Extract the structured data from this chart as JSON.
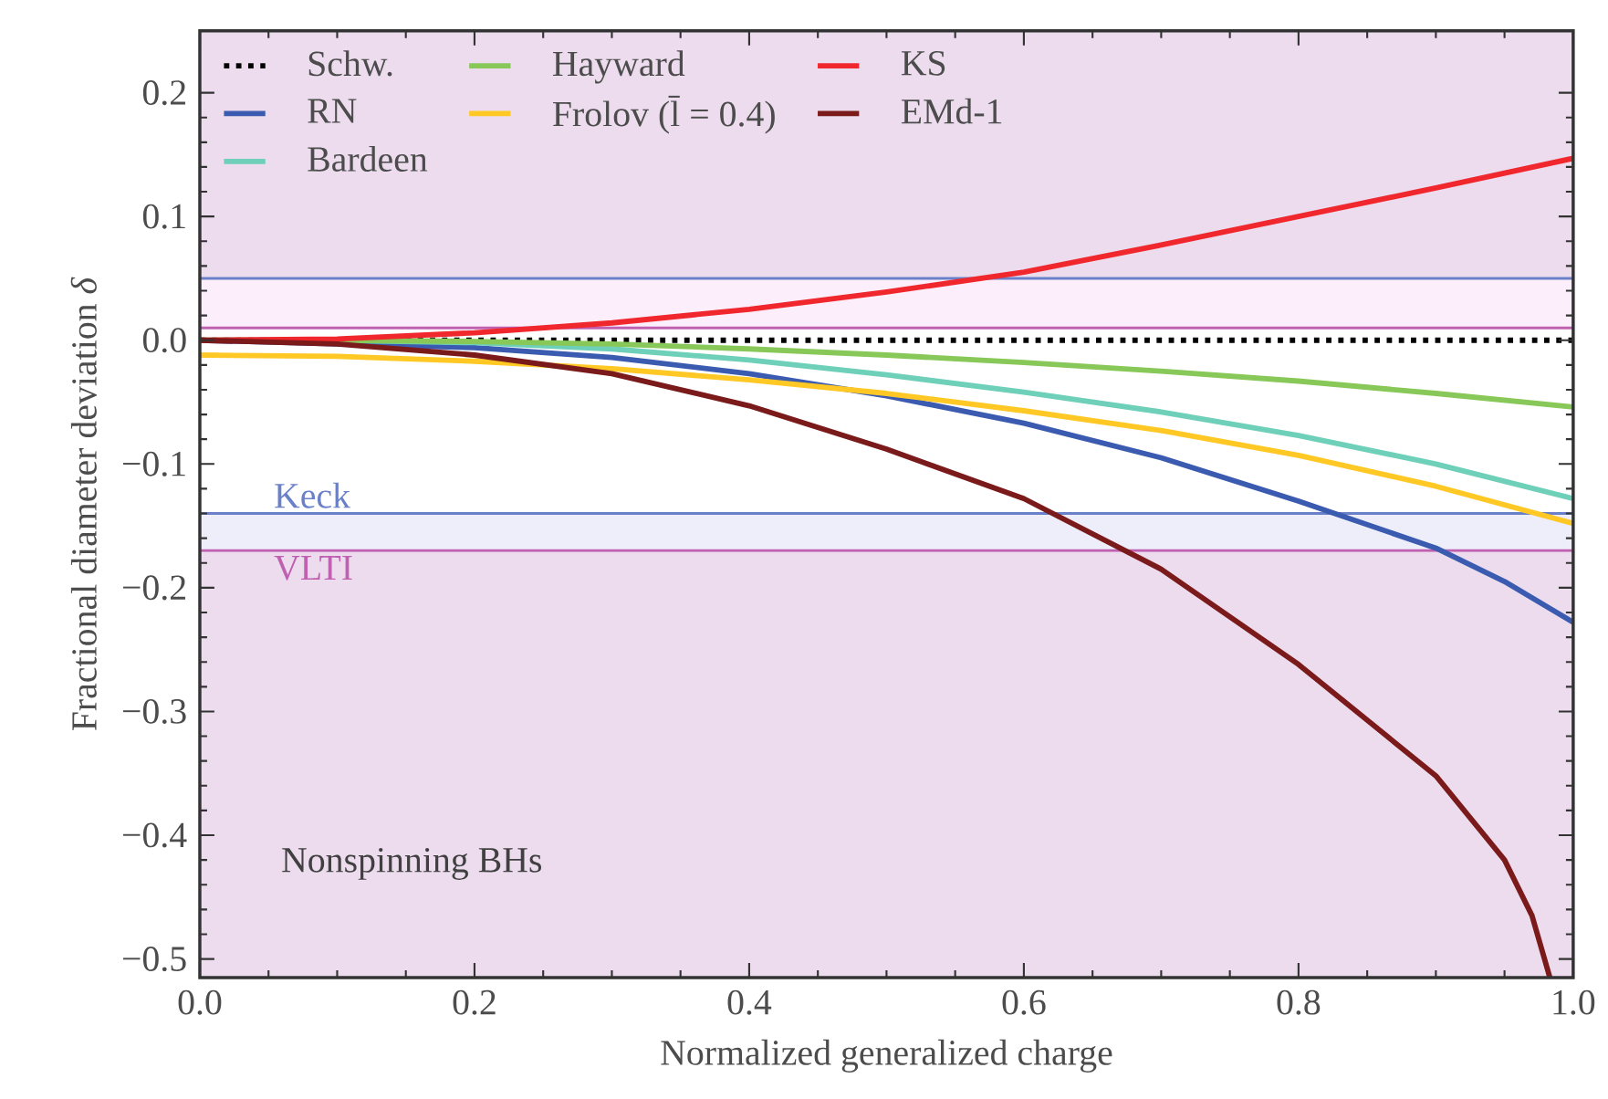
{
  "chart_data": {
    "type": "line",
    "xlabel": "Normalized generalized charge",
    "ylabel": "Fractional diameter deviation *δ*",
    "xlim": [
      0,
      1
    ],
    "ylim": [
      -0.515,
      0.25
    ],
    "xticks": [
      {
        "value": 0,
        "label": "0.0"
      },
      {
        "value": 0.2,
        "label": "0.2"
      },
      {
        "value": 0.4,
        "label": "0.4"
      },
      {
        "value": 0.6,
        "label": "0.6"
      },
      {
        "value": 0.8,
        "label": "0.8"
      },
      {
        "value": 1,
        "label": "1.0"
      }
    ],
    "yticks": [
      {
        "value": -0.5,
        "label": "−0.5"
      },
      {
        "value": -0.4,
        "label": "−0.4"
      },
      {
        "value": -0.3,
        "label": "−0.3"
      },
      {
        "value": -0.2,
        "label": "−0.2"
      },
      {
        "value": -0.1,
        "label": "−0.1"
      },
      {
        "value": 0,
        "label": "0.0"
      },
      {
        "value": 0.1,
        "label": "0.1"
      },
      {
        "value": 0.2,
        "label": "0.2"
      }
    ],
    "grid": false,
    "legend": "top left",
    "marker": "none",
    "series": [
      {
        "name": "Schw.",
        "color": "#000000",
        "line_style": "dotted",
        "x": [
          0,
          1
        ],
        "values": [
          0,
          0
        ]
      },
      {
        "name": "RN",
        "color": "#3a5bb0",
        "x": [
          0,
          0.2,
          0.3,
          0.4,
          0.5,
          0.6,
          0.7,
          0.8,
          0.9,
          0.95,
          1
        ],
        "values": [
          0,
          -0.006,
          -0.014,
          -0.027,
          -0.045,
          -0.067,
          -0.095,
          -0.13,
          -0.168,
          -0.195,
          -0.228
        ]
      },
      {
        "name": "Bardeen",
        "color": "#6ed0b8",
        "x": [
          0,
          0.1,
          0.2,
          0.3,
          0.4,
          0.5,
          0.6,
          0.7,
          0.8,
          0.9,
          1
        ],
        "values": [
          0,
          0,
          -0.002,
          -0.007,
          -0.016,
          -0.028,
          -0.042,
          -0.058,
          -0.077,
          -0.1,
          -0.128
        ]
      },
      {
        "name": "Hayward",
        "color": "#88c858",
        "x": [
          0,
          0.1,
          0.2,
          0.3,
          0.4,
          0.5,
          0.6,
          0.7,
          0.8,
          0.9,
          1
        ],
        "values": [
          0,
          0,
          -0.001,
          -0.003,
          -0.007,
          -0.012,
          -0.018,
          -0.025,
          -0.033,
          -0.043,
          -0.054
        ]
      },
      {
        "name": "Frolov (l̄ = 0.4)",
        "color": "#ffc825",
        "x": [
          0,
          0.1,
          0.2,
          0.3,
          0.4,
          0.5,
          0.6,
          0.7,
          0.8,
          0.9,
          1
        ],
        "values": [
          -0.012,
          -0.013,
          -0.017,
          -0.023,
          -0.032,
          -0.043,
          -0.057,
          -0.073,
          -0.093,
          -0.118,
          -0.148
        ]
      },
      {
        "name": "KS",
        "color": "#f0282e",
        "x": [
          0,
          0.1,
          0.2,
          0.3,
          0.4,
          0.5,
          0.6,
          0.7,
          0.8,
          0.9,
          1
        ],
        "values": [
          0,
          0.001,
          0.006,
          0.014,
          0.025,
          0.039,
          0.055,
          0.077,
          0.1,
          0.123,
          0.147
        ]
      },
      {
        "name": "EMd-1",
        "color": "#7a1a1a",
        "x": [
          0,
          0.1,
          0.2,
          0.3,
          0.4,
          0.5,
          0.6,
          0.7,
          0.8,
          0.9,
          0.95,
          0.97,
          0.983
        ],
        "values": [
          0,
          -0.003,
          -0.012,
          -0.027,
          -0.053,
          -0.088,
          -0.128,
          -0.185,
          -0.262,
          -0.352,
          -0.42,
          -0.465,
          -0.515
        ]
      }
    ],
    "bands": [
      {
        "axis": "y",
        "from": 0.05,
        "to": 0.25,
        "color": "#ecdcee"
      },
      {
        "axis": "y",
        "from": 0.01,
        "to": 0.05,
        "color": "#fdeefc"
      },
      {
        "axis": "y",
        "from": -0.17,
        "to": -0.14,
        "color": "#eeeefa"
      },
      {
        "axis": "y",
        "from": -0.515,
        "to": -0.17,
        "color": "#ecdcee"
      }
    ],
    "ref_lines": [
      {
        "axis": "y",
        "value": 0.05,
        "color": "#6a80c8"
      },
      {
        "axis": "y",
        "value": -0.14,
        "label": "Keck",
        "color": "#6a80c8"
      },
      {
        "axis": "y",
        "value": 0.01,
        "color": "#c060b0"
      },
      {
        "axis": "y",
        "value": -0.17,
        "label": "VLTI",
        "color": "#c060b0"
      }
    ],
    "annotations": [
      "Nonspinning BHs"
    ]
  }
}
